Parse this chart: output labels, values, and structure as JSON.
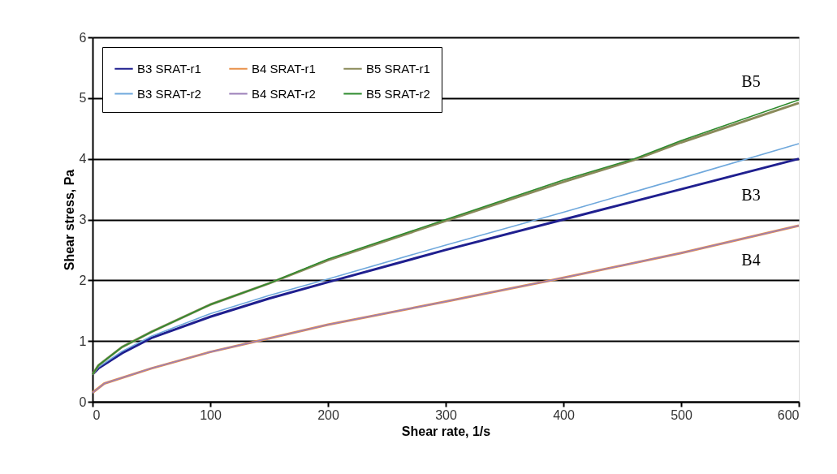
{
  "chart_data": {
    "type": "line",
    "xlabel": "Shear rate, 1/s",
    "ylabel": "Shear stress, Pa",
    "xlim": [
      0,
      600
    ],
    "xticks": [
      0,
      100,
      200,
      300,
      400,
      500,
      600
    ],
    "ylim": [
      0,
      6
    ],
    "yticks": [
      0,
      1,
      2,
      3,
      4,
      5,
      6
    ],
    "grid": "y",
    "legend": "top left",
    "marker": "none",
    "line_style": "solid",
    "series": [
      {
        "name": "B3 SRAT-r1",
        "color": "#1f1f8f",
        "x": [
          0,
          5,
          25,
          50,
          100,
          150,
          200,
          300,
          400,
          500,
          600
        ],
        "values": [
          0.45,
          0.55,
          0.8,
          1.05,
          1.4,
          1.7,
          1.97,
          2.5,
          3.0,
          3.5,
          4.0
        ]
      },
      {
        "name": "B3 SRAT-r2",
        "color": "#6fa8dc",
        "x": [
          0,
          5,
          25,
          50,
          100,
          150,
          200,
          300,
          400,
          500,
          600
        ],
        "values": [
          0.45,
          0.57,
          0.83,
          1.08,
          1.45,
          1.75,
          2.02,
          2.58,
          3.12,
          3.68,
          4.25
        ]
      },
      {
        "name": "B4 SRAT-r1",
        "color": "#e8914a",
        "x": [
          0,
          10,
          50,
          100,
          140,
          200,
          300,
          390,
          500,
          600
        ],
        "values": [
          0.15,
          0.3,
          0.55,
          0.82,
          1.0,
          1.27,
          1.65,
          2.0,
          2.45,
          2.9
        ]
      },
      {
        "name": "B4 SRAT-r2",
        "color": "#9b7fb8",
        "x": [
          0,
          10,
          50,
          100,
          140,
          200,
          300,
          390,
          500,
          600
        ],
        "values": [
          0.15,
          0.3,
          0.55,
          0.82,
          1.0,
          1.27,
          1.65,
          2.0,
          2.45,
          2.9
        ]
      },
      {
        "name": "B5 SRAT-r1",
        "color": "#8a8a5a",
        "x": [
          0,
          5,
          25,
          50,
          100,
          150,
          200,
          300,
          400,
          460,
          500,
          600
        ],
        "values": [
          0.45,
          0.6,
          0.9,
          1.15,
          1.6,
          1.95,
          2.33,
          2.98,
          3.62,
          3.98,
          4.27,
          4.92
        ]
      },
      {
        "name": "B5 SRAT-r2",
        "color": "#2e8b2e",
        "x": [
          0,
          5,
          25,
          50,
          100,
          150,
          200,
          300,
          400,
          460,
          500,
          600
        ],
        "values": [
          0.45,
          0.6,
          0.9,
          1.15,
          1.6,
          1.95,
          2.35,
          3.0,
          3.65,
          4.0,
          4.3,
          4.97
        ]
      }
    ],
    "annotations": [
      "B5",
      "B3",
      "B4"
    ]
  }
}
